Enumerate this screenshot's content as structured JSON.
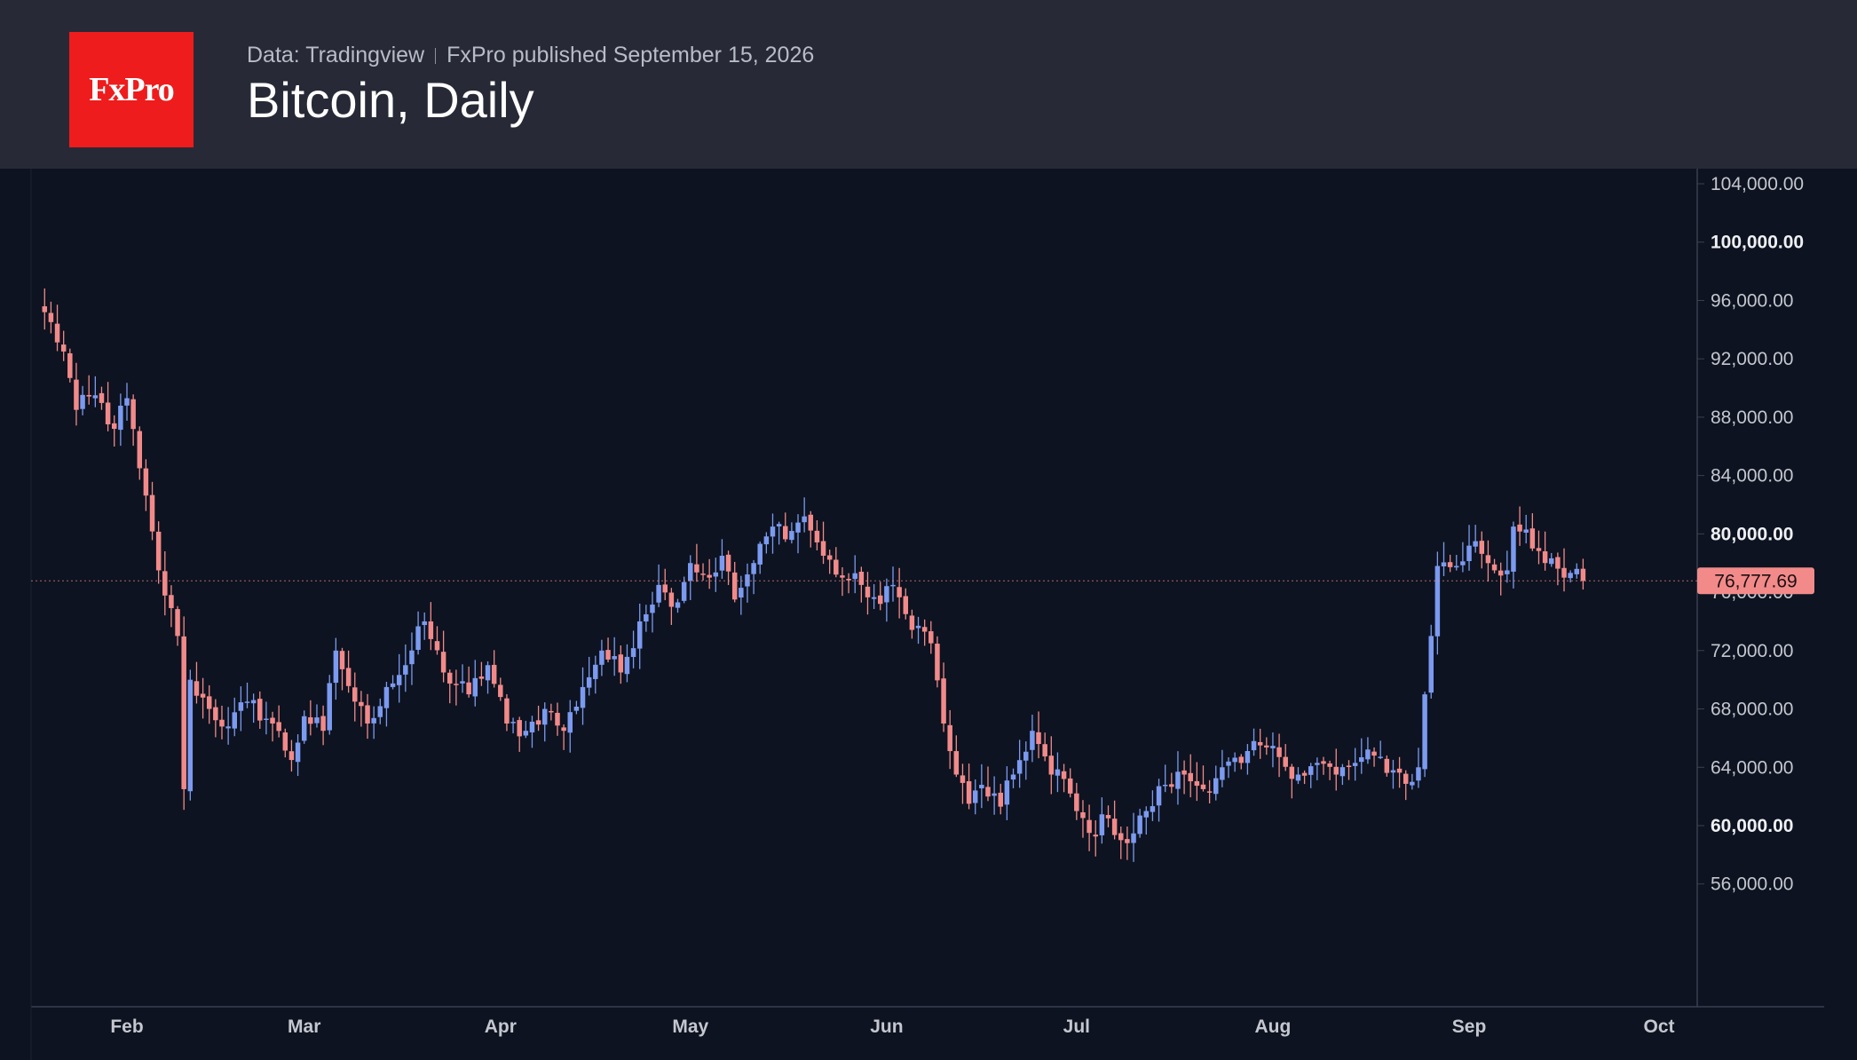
{
  "header": {
    "logo_text": "FxPro",
    "source_text": "Data: Tradingview",
    "published_text": "FxPro published September 15, 2026",
    "title": "Bitcoin, Daily"
  },
  "colors": {
    "up": "#7b9af0",
    "down": "#f28a8a",
    "background": "#0d1320",
    "header": "#272a36",
    "logo": "#ee1c1c"
  },
  "chart_data": {
    "type": "candlestick",
    "title": "Bitcoin, Daily",
    "x_ticks": [
      "Feb",
      "Mar",
      "Apr",
      "May",
      "Jun",
      "Jul",
      "Aug",
      "Sep",
      "Oct"
    ],
    "y_ticks": [
      "104,000.00",
      "100,000.00",
      "96,000.00",
      "92,000.00",
      "88,000.00",
      "84,000.00",
      "80,000.00",
      "76,000.00",
      "72,000.00",
      "68,000.00",
      "64,000.00",
      "60,000.00",
      "56,000.00"
    ],
    "y_tick_values": [
      104000,
      100000,
      96000,
      92000,
      88000,
      84000,
      80000,
      76000,
      72000,
      68000,
      64000,
      60000,
      56000
    ],
    "bold_ticks": [
      100000,
      80000,
      60000
    ],
    "ylim": [
      52000,
      104800
    ],
    "last_price": 76777.69,
    "last_price_label": "76,777.69",
    "anchors": [
      [
        "2026-01-19",
        95200
      ],
      [
        "2026-01-22",
        92500
      ],
      [
        "2026-01-24",
        88500
      ],
      [
        "2026-01-27",
        89500
      ],
      [
        "2026-01-30",
        87200
      ],
      [
        "2026-02-01",
        89300
      ],
      [
        "2026-02-03",
        84500
      ],
      [
        "2026-02-06",
        77500
      ],
      [
        "2026-02-09",
        73000
      ],
      [
        "2026-02-10",
        62500
      ],
      [
        "2026-02-11",
        70000
      ],
      [
        "2026-02-14",
        68000
      ],
      [
        "2026-02-17",
        66800
      ],
      [
        "2026-02-20",
        68500
      ],
      [
        "2026-02-24",
        67000
      ],
      [
        "2026-02-27",
        64500
      ],
      [
        "2026-03-01",
        67500
      ],
      [
        "2026-03-04",
        66500
      ],
      [
        "2026-03-06",
        72000
      ],
      [
        "2026-03-09",
        68500
      ],
      [
        "2026-03-11",
        67000
      ],
      [
        "2026-03-14",
        69500
      ],
      [
        "2026-03-17",
        71000
      ],
      [
        "2026-03-20",
        74000
      ],
      [
        "2026-03-23",
        70500
      ],
      [
        "2026-03-27",
        69000
      ],
      [
        "2026-03-30",
        71000
      ],
      [
        "2026-04-02",
        67000
      ],
      [
        "2026-04-05",
        66500
      ],
      [
        "2026-04-08",
        68000
      ],
      [
        "2026-04-11",
        66500
      ],
      [
        "2026-04-14",
        69500
      ],
      [
        "2026-04-17",
        72000
      ],
      [
        "2026-04-20",
        70500
      ],
      [
        "2026-04-23",
        74000
      ],
      [
        "2026-04-26",
        76500
      ],
      [
        "2026-04-28",
        75000
      ],
      [
        "2026-05-01",
        78000
      ],
      [
        "2026-05-04",
        77000
      ],
      [
        "2026-05-06",
        78500
      ],
      [
        "2026-05-08",
        75500
      ],
      [
        "2026-05-11",
        78000
      ],
      [
        "2026-05-14",
        80500
      ],
      [
        "2026-05-17",
        80200
      ],
      [
        "2026-05-19",
        81200
      ],
      [
        "2026-05-22",
        78500
      ],
      [
        "2026-05-25",
        77000
      ],
      [
        "2026-05-28",
        76500
      ],
      [
        "2026-05-31",
        75200
      ],
      [
        "2026-06-02",
        76500
      ],
      [
        "2026-06-04",
        74500
      ],
      [
        "2026-06-06",
        73700
      ],
      [
        "2026-06-08",
        72500
      ],
      [
        "2026-06-10",
        67000
      ],
      [
        "2026-06-12",
        63500
      ],
      [
        "2026-06-14",
        61500
      ],
      [
        "2026-06-16",
        62800
      ],
      [
        "2026-06-19",
        61300
      ],
      [
        "2026-06-21",
        63500
      ],
      [
        "2026-06-24",
        66500
      ],
      [
        "2026-06-27",
        63500
      ],
      [
        "2026-06-29",
        63200
      ],
      [
        "2026-07-01",
        61000
      ],
      [
        "2026-07-03",
        59500
      ],
      [
        "2026-07-06",
        60500
      ],
      [
        "2026-07-09",
        58800
      ],
      [
        "2026-07-12",
        61000
      ],
      [
        "2026-07-15",
        62800
      ],
      [
        "2026-07-18",
        63500
      ],
      [
        "2026-07-21",
        62500
      ],
      [
        "2026-07-24",
        64000
      ],
      [
        "2026-07-27",
        64300
      ],
      [
        "2026-07-30",
        65500
      ],
      [
        "2026-08-02",
        64700
      ],
      [
        "2026-08-05",
        63500
      ],
      [
        "2026-08-08",
        64300
      ],
      [
        "2026-08-11",
        63500
      ],
      [
        "2026-08-14",
        64300
      ],
      [
        "2026-08-17",
        64800
      ],
      [
        "2026-08-20",
        63800
      ],
      [
        "2026-08-23",
        63000
      ],
      [
        "2026-08-24",
        64000
      ],
      [
        "2026-08-25",
        69000
      ],
      [
        "2026-08-26",
        73000
      ],
      [
        "2026-08-27",
        77800
      ],
      [
        "2026-08-30",
        77800
      ],
      [
        "2026-09-02",
        79500
      ],
      [
        "2026-09-05",
        77500
      ],
      [
        "2026-09-07",
        77500
      ],
      [
        "2026-09-08",
        80500
      ],
      [
        "2026-09-10",
        80300
      ],
      [
        "2026-09-13",
        78000
      ],
      [
        "2026-09-16",
        77000
      ],
      [
        "2026-09-18",
        77600
      ],
      [
        "2026-09-19",
        76777.69
      ]
    ]
  }
}
